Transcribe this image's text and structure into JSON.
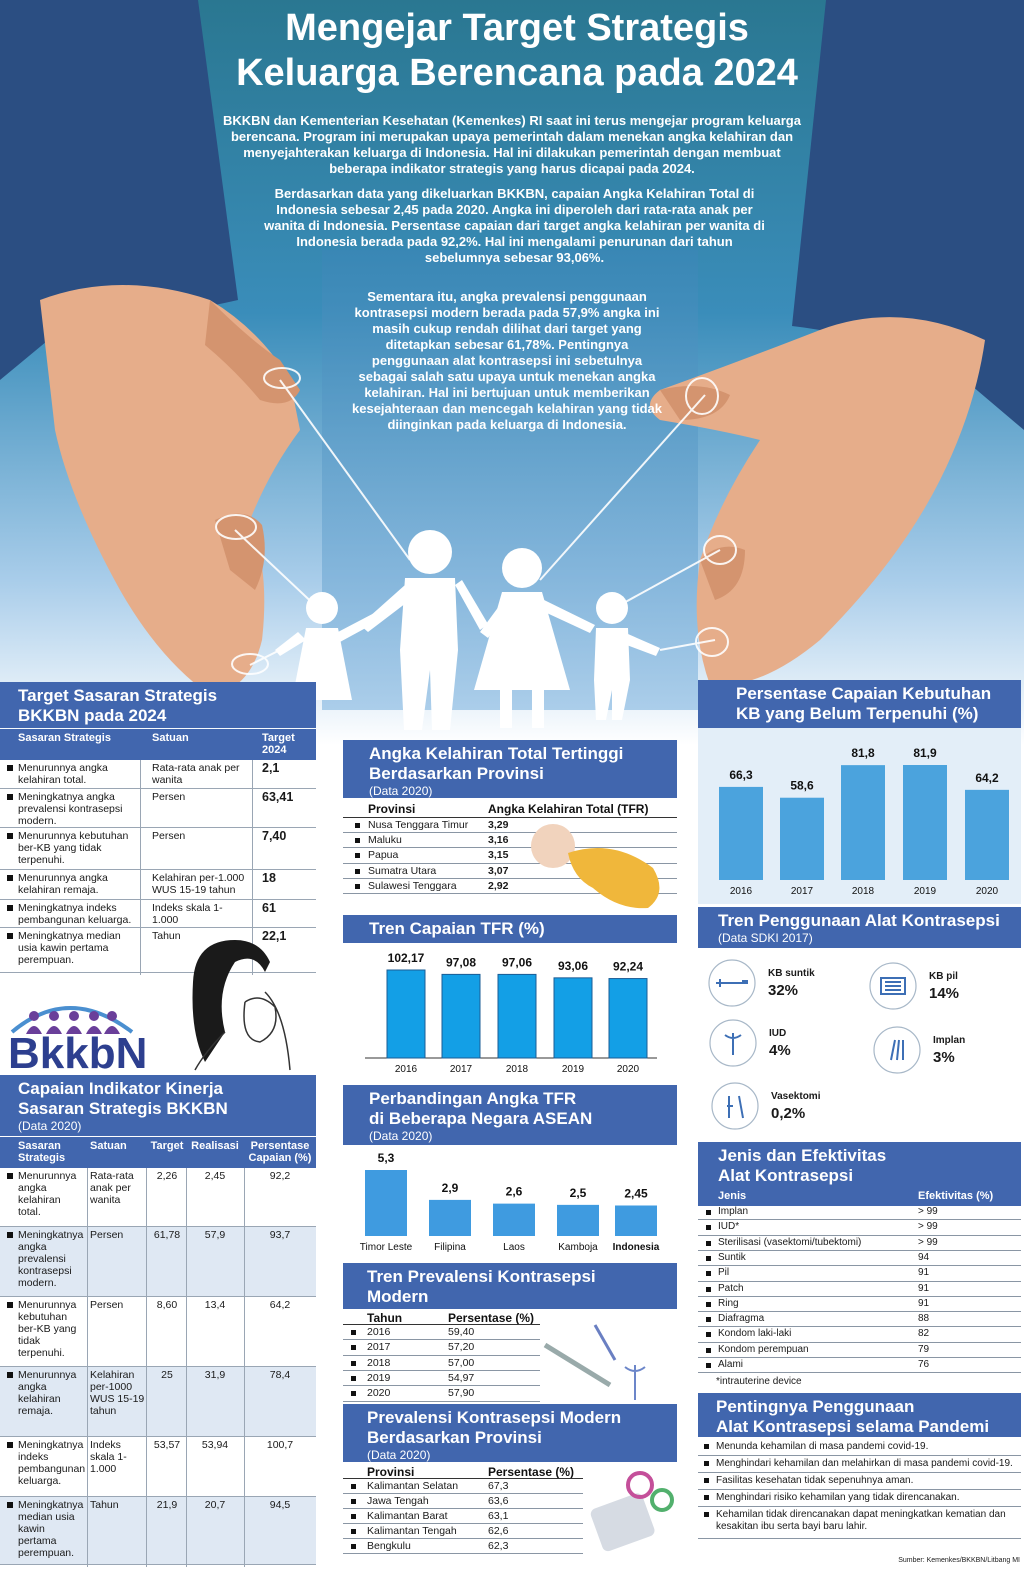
{
  "header": {
    "title": [
      "Mengejar Target Strategis",
      "Keluarga Berencana pada 2024"
    ],
    "paragraphs": [
      "BKKBN dan Kementerian Kesehatan (Kemenkes) RI saat ini terus mengejar program keluarga berencana. Program ini merupakan upaya pemerintah dalam menekan angka kelahiran dan menyejahterakan keluarga di Indonesia. Hal ini dilakukan pemerintah dengan membuat beberapa indikator strategis yang harus dicapai pada 2024.",
      "Berdasarkan data yang dikeluarkan BKKBN, capaian Angka Kelahiran Total di Indonesia sebesar 2,45 pada 2020. Angka ini diperoleh dari rata-rata anak per wanita di Indonesia. Persentase capaian dari target angka kelahiran per wanita di Indonesia berada pada 92,2%. Hal ini mengalami penurunan dari tahun sebelumnya sebesar 93,06%.",
      "Sementara itu, angka prevalensi penggunaan kontrasepsi modern berada pada 57,9% angka ini masih cukup rendah dilihat dari target yang ditetapkan sebesar 61,78%. Pentingnya penggunaan alat kontrasepsi ini sebetulnya sebagai salah satu upaya untuk menekan angka kelahiran. Hal ini bertujuan untuk memberikan kesejahteraan dan mencegah kelahiran yang tidak diinginkan pada keluarga di Indonesia."
    ]
  },
  "target_2024": {
    "title": [
      "Target Sasaran Strategis",
      "BKKBN pada 2024"
    ],
    "columns": [
      "Sasaran Strategis",
      "Satuan",
      "Target 2024"
    ],
    "rows": [
      [
        "Menurunnya angka kelahiran total.",
        "Rata-rata anak per wanita",
        "2,1"
      ],
      [
        "Meningkatnya angka prevalensi kontrasepsi modern.",
        "Persen",
        "63,41"
      ],
      [
        "Menurunnya kebutuhan ber-KB yang tidak terpenuhi.",
        "Persen",
        "7,40"
      ],
      [
        "Menurunnya angka kelahiran remaja.",
        "Kelahiran per-1.000 WUS 15-19 tahun",
        "18"
      ],
      [
        "Meningkatnya indeks pembangunan keluarga.",
        "Indeks skala 1-1.000",
        "61"
      ],
      [
        "Meningkatnya median usia kawin pertama perempuan.",
        "Tahun",
        "22,1"
      ]
    ]
  },
  "logo": "BkkbN",
  "capaian": {
    "title": [
      "Capaian Indikator Kinerja",
      "Sasaran Strategis BKKBN"
    ],
    "subtitle": "(Data 2020)",
    "columns": [
      "Sasaran Strategis",
      "Satuan",
      "Target",
      "Realisasi",
      "Persentase Capaian (%)"
    ],
    "rows": [
      [
        "Menurunnya angka kelahiran total.",
        "Rata-rata anak per wanita",
        "2,26",
        "2,45",
        "92,2"
      ],
      [
        "Meningkatnya angka prevalensi kontrasepsi modern.",
        "Persen",
        "61,78",
        "57,9",
        "93,7"
      ],
      [
        "Menurunnya kebutuhan ber-KB yang tidak terpenuhi.",
        "Persen",
        "8,60",
        "13,4",
        "64,2"
      ],
      [
        "Menurunnya angka kelahiran remaja.",
        "Kelahiran per-1000 WUS 15-19 tahun",
        "25",
        "31,9",
        "78,4"
      ],
      [
        "Meningkatnya indeks pembangunan keluarga.",
        "Indeks skala 1-1.000",
        "53,57",
        "53,94",
        "100,7"
      ],
      [
        "Meningkatnya median usia kawin pertama perempuan.",
        "Tahun",
        "21,9",
        "20,7",
        "94,5"
      ]
    ]
  },
  "tfr_provinsi": {
    "title": [
      "Angka Kelahiran Total Tertinggi",
      "Berdasarkan Provinsi"
    ],
    "subtitle": "(Data 2020)",
    "columns": [
      "Provinsi",
      "Angka Kelahiran Total (TFR)"
    ],
    "rows": [
      [
        "Nusa Tenggara Timur",
        "3,29"
      ],
      [
        "Maluku",
        "3,16"
      ],
      [
        "Papua",
        "3,15"
      ],
      [
        "Sumatra Utara",
        "3,07"
      ],
      [
        "Sulawesi Tenggara",
        "2,92"
      ]
    ]
  },
  "chart_data": [
    {
      "type": "bar",
      "title": [
        "Persentase Capaian Kebutuhan",
        "KB yang Belum Terpenuhi (%)"
      ],
      "categories": [
        "2016",
        "2017",
        "2018",
        "2019",
        "2020"
      ],
      "values": [
        66.3,
        58.6,
        81.8,
        81.9,
        64.2
      ],
      "value_labels": [
        "66,3",
        "58,6",
        "81,8",
        "81,9",
        "64,2"
      ],
      "color": "#4ba3dd"
    },
    {
      "type": "bar",
      "title": [
        "Tren Capaian TFR (%)"
      ],
      "categories": [
        "2016",
        "2017",
        "2018",
        "2019",
        "2020"
      ],
      "values": [
        102.17,
        97.08,
        97.06,
        93.06,
        92.24
      ],
      "value_labels": [
        "102,17",
        "97,08",
        "97,06",
        "93,06",
        "92,24"
      ],
      "color": "#139fe6"
    },
    {
      "type": "bar",
      "title": [
        "Perbandingan Angka TFR",
        "di Beberapa Negara ASEAN"
      ],
      "subtitle": "(Data 2020)",
      "categories": [
        "Timor Leste",
        "Filipina",
        "Laos",
        "Kamboja",
        "Indonesia"
      ],
      "values": [
        5.3,
        2.9,
        2.6,
        2.5,
        2.45
      ],
      "value_labels": [
        "5,3",
        "2,9",
        "2,6",
        "2,5",
        "2,45"
      ],
      "color": "#3f9be0"
    }
  ],
  "prevalensi_tren": {
    "title": [
      "Tren Prevalensi Kontrasepsi",
      "Modern"
    ],
    "columns": [
      "Tahun",
      "Persentase (%)"
    ],
    "rows": [
      [
        "2016",
        "59,40"
      ],
      [
        "2017",
        "57,20"
      ],
      [
        "2018",
        "57,00"
      ],
      [
        "2019",
        "54,97"
      ],
      [
        "2020",
        "57,90"
      ]
    ]
  },
  "prevalensi_provinsi": {
    "title": [
      "Prevalensi Kontrasepsi Modern",
      "Berdasarkan Provinsi"
    ],
    "subtitle": "(Data 2020)",
    "columns": [
      "Provinsi",
      "Persentase (%)"
    ],
    "rows": [
      [
        "Kalimantan Selatan",
        "67,3"
      ],
      [
        "Jawa Tengah",
        "63,6"
      ],
      [
        "Kalimantan Barat",
        "63,1"
      ],
      [
        "Kalimantan Tengah",
        "62,6"
      ],
      [
        "Bengkulu",
        "62,3"
      ]
    ]
  },
  "alat_kontrasepsi": {
    "title": [
      "Tren Penggunaan Alat Kontrasepsi"
    ],
    "subtitle": "(Data SDKI 2017)",
    "items": [
      {
        "name": "KB suntik",
        "value": "32%"
      },
      {
        "name": "KB pil",
        "value": "14%"
      },
      {
        "name": "IUD",
        "value": "4%"
      },
      {
        "name": "Implan",
        "value": "3%"
      },
      {
        "name": "Vasektomi",
        "value": "0,2%"
      }
    ]
  },
  "efektivitas": {
    "title": [
      "Jenis dan Efektivitas",
      "Alat Kontrasepsi"
    ],
    "columns": [
      "Jenis",
      "Efektivitas (%)"
    ],
    "rows": [
      [
        "Implan",
        "> 99"
      ],
      [
        "IUD*",
        "> 99"
      ],
      [
        "Sterilisasi (vasektomi/tubektomi)",
        "> 99"
      ],
      [
        "Suntik",
        "94"
      ],
      [
        "Pil",
        "91"
      ],
      [
        "Patch",
        "91"
      ],
      [
        "Ring",
        "91"
      ],
      [
        "Diafragma",
        "88"
      ],
      [
        "Kondom laki-laki",
        "82"
      ],
      [
        "Kondom perempuan",
        "79"
      ],
      [
        "Alami",
        "76"
      ]
    ],
    "note": "*intrauterine device"
  },
  "pandemi": {
    "title": [
      "Pentingnya Penggunaan",
      "Alat Kontrasepsi selama Pandemi"
    ],
    "items": [
      "Menunda kehamilan di masa pandemi covid-19.",
      "Menghindari kehamilan dan melahirkan di masa pandemi covid-19.",
      "Fasilitas kesehatan tidak sepenuhnya aman.",
      "Menghindari risiko kehamilan yang tidak direncanakan.",
      "Kehamilan tidak direncanakan dapat meningkatkan kematian dan kesakitan ibu serta bayi baru lahir."
    ]
  },
  "source": "Sumber: Kemenkes/BKKBN/Litbang MI"
}
